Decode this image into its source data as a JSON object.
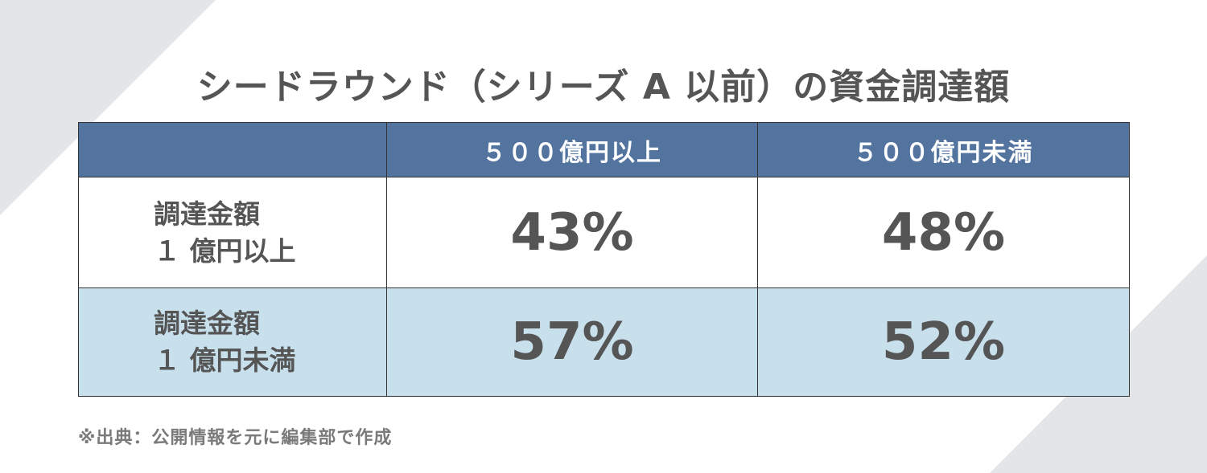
{
  "title": "シードラウンド（シリーズ A 以前）の資金調達額",
  "table": {
    "columns": [
      "",
      "５００億円以上",
      "５００億円未満"
    ],
    "rows": [
      {
        "label_line1": "調達金額",
        "label_line2": "１ 億円以上",
        "values": [
          "43%",
          "48%"
        ]
      },
      {
        "label_line1": "調達金額",
        "label_line2": "１ 億円未満",
        "values": [
          "57%",
          "52%"
        ]
      }
    ]
  },
  "source": "※出典：公開情報を元に編集部で作成",
  "colors": {
    "header_bg": "#5474a0",
    "header_text": "#ffffff",
    "row2_bg": "#c8dfec",
    "text": "#555555",
    "decor": "#e4e5e8"
  }
}
